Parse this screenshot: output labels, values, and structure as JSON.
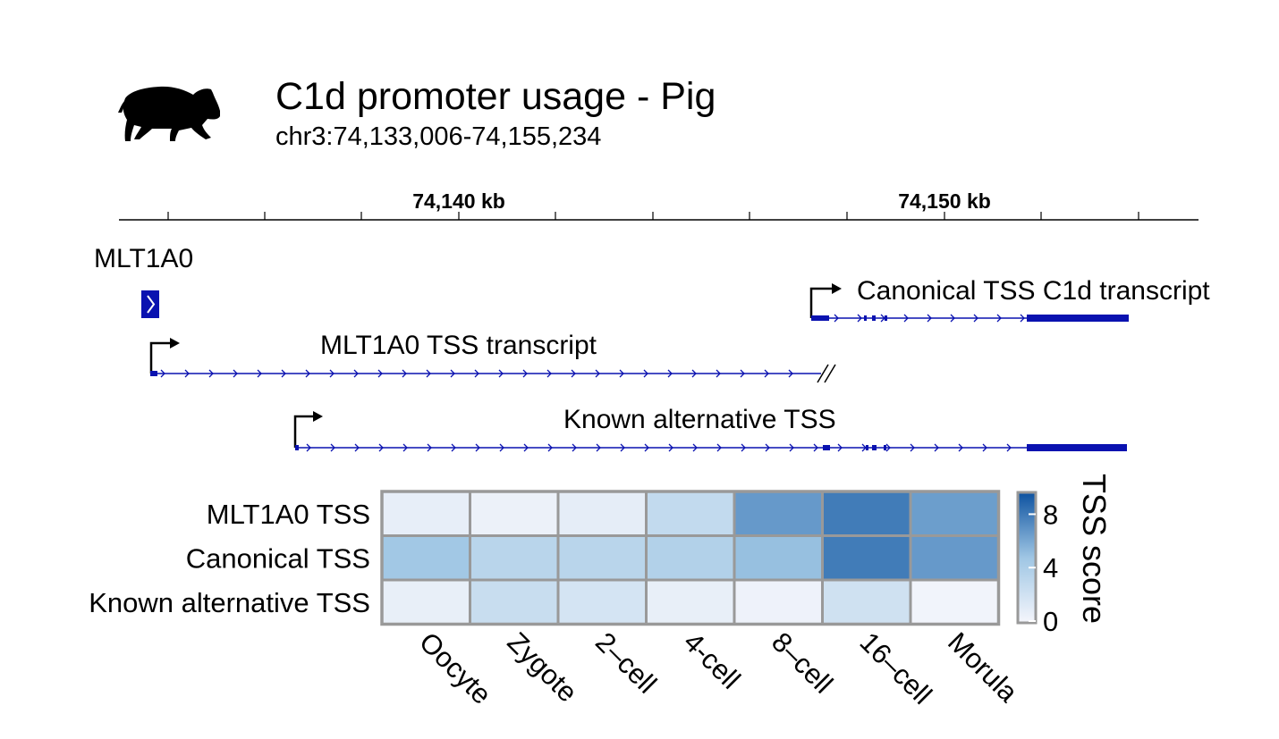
{
  "header": {
    "title": "C1d promoter usage - Pig",
    "subtitle": "chr3:74,133,006-74,155,234",
    "icon": "pig-silhouette-icon"
  },
  "genome_axis": {
    "tick_labels": [
      "74,140 kb",
      "74,150 kb"
    ]
  },
  "tracks": {
    "repeat_label": "MLT1A0",
    "transcripts": [
      {
        "label": "Canonical TSS C1d transcript"
      },
      {
        "label": "MLT1A0 TSS transcript"
      },
      {
        "label": "Known alternative TSS"
      }
    ],
    "track_color": "#0a12b0"
  },
  "chart_data": {
    "type": "heatmap",
    "rows": [
      "MLT1A0 TSS",
      "Canonical TSS",
      "Known alternative TSS"
    ],
    "columns": [
      "Oocyte",
      "Zygote",
      "2–cell",
      "4-cell",
      "8–cell",
      "16–cell",
      "Morula"
    ],
    "values": [
      [
        0.8,
        0.5,
        0.9,
        2.8,
        6.6,
        7.8,
        6.4
      ],
      [
        4.6,
        3.3,
        3.3,
        3.7,
        5.0,
        7.8,
        6.6
      ],
      [
        0.7,
        2.5,
        1.8,
        0.7,
        0.4,
        2.1,
        0.2
      ]
    ],
    "colorbar": {
      "title": "TSS score",
      "ticks": [
        "0",
        "4",
        "8"
      ],
      "min": 0,
      "max": 9.5,
      "low_color": "#f5f6fc",
      "high_color": "#0d52a0"
    }
  }
}
